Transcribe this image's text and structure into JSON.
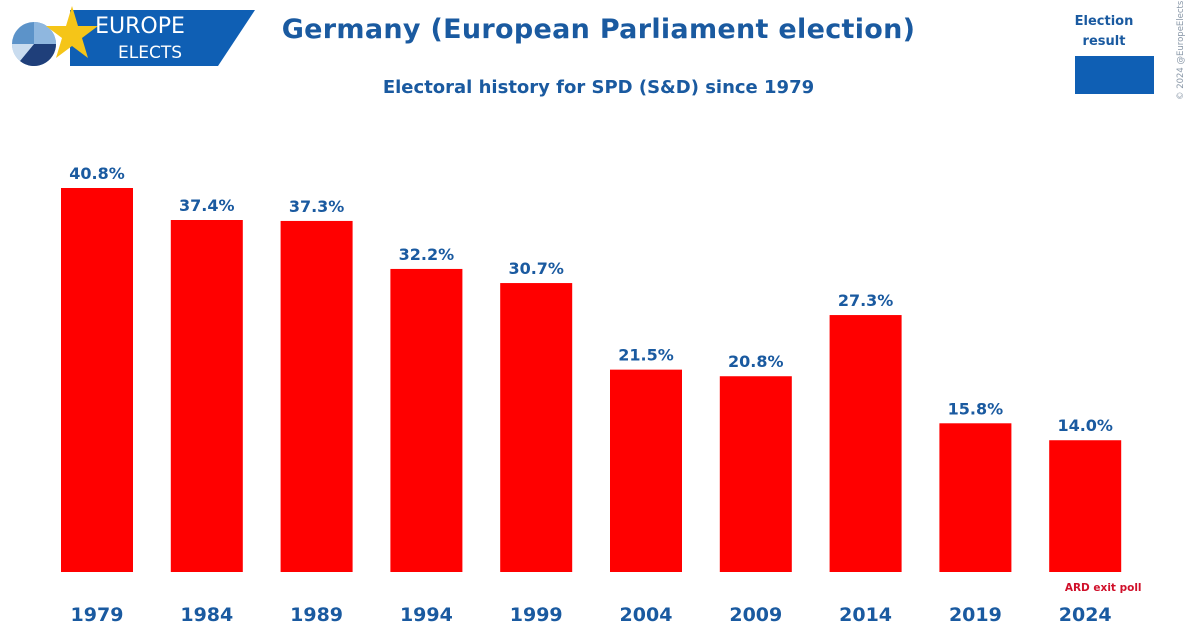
{
  "brand": {
    "line1": "EUROPE",
    "line2": "ELECTS",
    "colors": {
      "banner": "#0f5fb4",
      "star": "#f5c518"
    }
  },
  "header": {
    "title": "Germany (European Parliament election)",
    "subtitle": "Electoral history for SPD (S&D) since 1979"
  },
  "legend": {
    "label": "Election result",
    "color": "#0f5fb4"
  },
  "credit": "© 2024 @EuropeElects",
  "chart_data": {
    "type": "bar",
    "title": "Germany (European Parliament election)",
    "subtitle": "Electoral history for SPD (S&D) since 1979",
    "xlabel": "",
    "ylabel": "",
    "categories": [
      "1979",
      "1984",
      "1989",
      "1994",
      "1999",
      "2004",
      "2009",
      "2014",
      "2019",
      "2024"
    ],
    "values": [
      40.8,
      37.4,
      37.3,
      32.2,
      30.7,
      21.5,
      20.8,
      27.3,
      15.8,
      14.0
    ],
    "value_labels": [
      "40.8%",
      "37.4%",
      "37.3%",
      "32.2%",
      "30.7%",
      "21.5%",
      "20.8%",
      "27.3%",
      "15.8%",
      "14.0%"
    ],
    "ylim": [
      0,
      40.8
    ],
    "grid": false,
    "bar_color": "#ff0000",
    "legend": {
      "entries": [
        "Election result"
      ],
      "position": "top-right"
    },
    "annotations": [
      {
        "category": "2024",
        "text": "ARD exit poll"
      }
    ]
  }
}
